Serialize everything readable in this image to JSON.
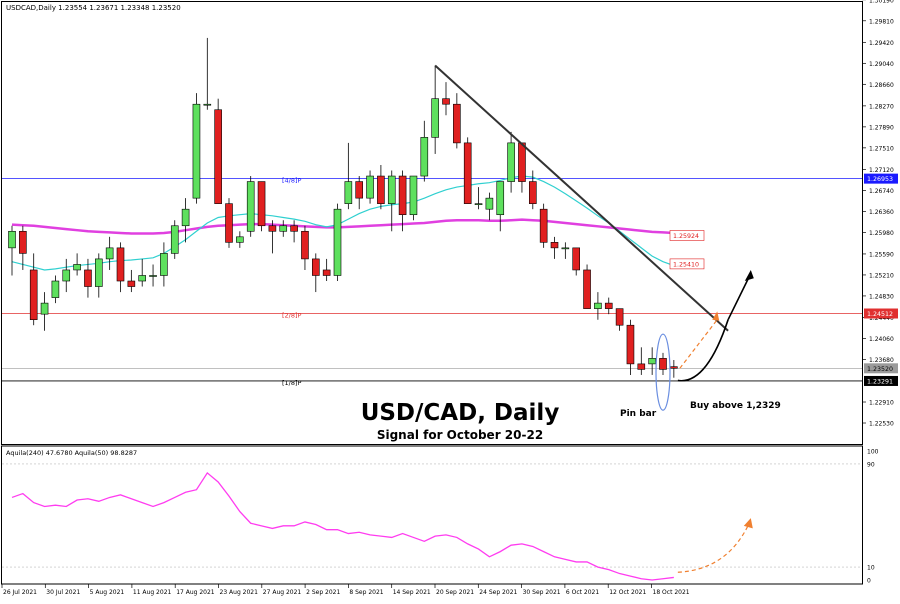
{
  "chart_data": [
    {
      "type": "candlestick",
      "symbol_info": "USDCAD,Daily  1.23554 1.23671 1.23348 1.23520",
      "title": "USD/CAD, Daily",
      "subtitle": "Signal for October 20-22",
      "ylim": [
        1.2215,
        1.3015
      ],
      "y_ticks": [
        "1.30190",
        "1.29810",
        "1.29420",
        "1.29040",
        "1.28660",
        "1.28270",
        "1.27890",
        "1.27510",
        "1.27120",
        "1.26740",
        "1.26360",
        "1.25980",
        "1.25590",
        "1.25210",
        "1.24830",
        "1.24440",
        "1.24060",
        "1.23680",
        "1.22910",
        "1.22530"
      ],
      "x_ticks": [
        "26 Jul 2021",
        "30 Jul 2021",
        "5 Aug 2021",
        "11 Aug 2021",
        "17 Aug 2021",
        "23 Aug 2021",
        "27 Aug 2021",
        "2 Sep 2021",
        "8 Sep 2021",
        "14 Sep 2021",
        "20 Sep 2021",
        "24 Sep 2021",
        "30 Sep 2021",
        "6 Oct 2021",
        "12 Oct 2021",
        "18 Oct 2021"
      ],
      "candles": [
        {
          "o": 1.257,
          "h": 1.261,
          "l": 1.252,
          "c": 1.26
        },
        {
          "o": 1.26,
          "h": 1.261,
          "l": 1.253,
          "c": 1.256
        },
        {
          "o": 1.253,
          "h": 1.256,
          "l": 1.243,
          "c": 1.244
        },
        {
          "o": 1.245,
          "h": 1.249,
          "l": 1.242,
          "c": 1.247
        },
        {
          "o": 1.248,
          "h": 1.252,
          "l": 1.247,
          "c": 1.251
        },
        {
          "o": 1.251,
          "h": 1.255,
          "l": 1.249,
          "c": 1.253
        },
        {
          "o": 1.253,
          "h": 1.256,
          "l": 1.252,
          "c": 1.254
        },
        {
          "o": 1.253,
          "h": 1.255,
          "l": 1.248,
          "c": 1.25
        },
        {
          "o": 1.25,
          "h": 1.256,
          "l": 1.248,
          "c": 1.255
        },
        {
          "o": 1.255,
          "h": 1.259,
          "l": 1.253,
          "c": 1.257
        },
        {
          "o": 1.257,
          "h": 1.258,
          "l": 1.249,
          "c": 1.251
        },
        {
          "o": 1.251,
          "h": 1.253,
          "l": 1.249,
          "c": 1.25
        },
        {
          "o": 1.251,
          "h": 1.255,
          "l": 1.25,
          "c": 1.252
        },
        {
          "o": 1.252,
          "h": 1.254,
          "l": 1.25,
          "c": 1.252
        },
        {
          "o": 1.252,
          "h": 1.258,
          "l": 1.25,
          "c": 1.256
        },
        {
          "o": 1.256,
          "h": 1.262,
          "l": 1.255,
          "c": 1.261
        },
        {
          "o": 1.261,
          "h": 1.266,
          "l": 1.258,
          "c": 1.264
        },
        {
          "o": 1.266,
          "h": 1.285,
          "l": 1.265,
          "c": 1.283
        },
        {
          "o": 1.283,
          "h": 1.295,
          "l": 1.282,
          "c": 1.283
        },
        {
          "o": 1.282,
          "h": 1.284,
          "l": 1.265,
          "c": 1.265
        },
        {
          "o": 1.265,
          "h": 1.266,
          "l": 1.257,
          "c": 1.258
        },
        {
          "o": 1.258,
          "h": 1.26,
          "l": 1.257,
          "c": 1.259
        },
        {
          "o": 1.26,
          "h": 1.27,
          "l": 1.259,
          "c": 1.269
        },
        {
          "o": 1.269,
          "h": 1.269,
          "l": 1.26,
          "c": 1.261
        },
        {
          "o": 1.261,
          "h": 1.262,
          "l": 1.256,
          "c": 1.26
        },
        {
          "o": 1.26,
          "h": 1.262,
          "l": 1.259,
          "c": 1.261
        },
        {
          "o": 1.261,
          "h": 1.262,
          "l": 1.258,
          "c": 1.26
        },
        {
          "o": 1.26,
          "h": 1.261,
          "l": 1.253,
          "c": 1.255
        },
        {
          "o": 1.255,
          "h": 1.256,
          "l": 1.249,
          "c": 1.252
        },
        {
          "o": 1.253,
          "h": 1.255,
          "l": 1.251,
          "c": 1.252
        },
        {
          "o": 1.252,
          "h": 1.265,
          "l": 1.251,
          "c": 1.264
        },
        {
          "o": 1.265,
          "h": 1.276,
          "l": 1.264,
          "c": 1.269
        },
        {
          "o": 1.269,
          "h": 1.27,
          "l": 1.264,
          "c": 1.266
        },
        {
          "o": 1.266,
          "h": 1.271,
          "l": 1.265,
          "c": 1.27
        },
        {
          "o": 1.27,
          "h": 1.272,
          "l": 1.264,
          "c": 1.265
        },
        {
          "o": 1.265,
          "h": 1.271,
          "l": 1.26,
          "c": 1.27
        },
        {
          "o": 1.27,
          "h": 1.271,
          "l": 1.26,
          "c": 1.263
        },
        {
          "o": 1.263,
          "h": 1.27,
          "l": 1.262,
          "c": 1.27
        },
        {
          "o": 1.27,
          "h": 1.28,
          "l": 1.269,
          "c": 1.277
        },
        {
          "o": 1.277,
          "h": 1.29,
          "l": 1.274,
          "c": 1.284
        },
        {
          "o": 1.284,
          "h": 1.287,
          "l": 1.281,
          "c": 1.283
        },
        {
          "o": 1.283,
          "h": 1.285,
          "l": 1.275,
          "c": 1.276
        },
        {
          "o": 1.276,
          "h": 1.277,
          "l": 1.265,
          "c": 1.265
        },
        {
          "o": 1.265,
          "h": 1.268,
          "l": 1.264,
          "c": 1.265
        },
        {
          "o": 1.264,
          "h": 1.267,
          "l": 1.262,
          "c": 1.266
        },
        {
          "o": 1.263,
          "h": 1.269,
          "l": 1.26,
          "c": 1.269
        },
        {
          "o": 1.269,
          "h": 1.278,
          "l": 1.267,
          "c": 1.276
        },
        {
          "o": 1.276,
          "h": 1.276,
          "l": 1.267,
          "c": 1.269
        },
        {
          "o": 1.269,
          "h": 1.271,
          "l": 1.264,
          "c": 1.265
        },
        {
          "o": 1.264,
          "h": 1.265,
          "l": 1.257,
          "c": 1.258
        },
        {
          "o": 1.258,
          "h": 1.259,
          "l": 1.255,
          "c": 1.257
        },
        {
          "o": 1.257,
          "h": 1.258,
          "l": 1.255,
          "c": 1.257
        },
        {
          "o": 1.257,
          "h": 1.257,
          "l": 1.252,
          "c": 1.253
        },
        {
          "o": 1.253,
          "h": 1.254,
          "l": 1.246,
          "c": 1.246
        },
        {
          "o": 1.246,
          "h": 1.249,
          "l": 1.244,
          "c": 1.247
        },
        {
          "o": 1.247,
          "h": 1.248,
          "l": 1.245,
          "c": 1.246
        },
        {
          "o": 1.246,
          "h": 1.246,
          "l": 1.242,
          "c": 1.243
        },
        {
          "o": 1.243,
          "h": 1.244,
          "l": 1.234,
          "c": 1.236
        },
        {
          "o": 1.236,
          "h": 1.239,
          "l": 1.234,
          "c": 1.235
        },
        {
          "o": 1.236,
          "h": 1.239,
          "l": 1.234,
          "c": 1.237
        },
        {
          "o": 1.237,
          "h": 1.238,
          "l": 1.234,
          "c": 1.235
        },
        {
          "o": 1.2355,
          "h": 1.2367,
          "l": 1.2335,
          "c": 1.2352
        }
      ],
      "ma_fast": [
        1.2545,
        1.254,
        1.2535,
        1.253,
        1.2532,
        1.2535,
        1.2538,
        1.254,
        1.2542,
        1.2545,
        1.2547,
        1.2548,
        1.255,
        1.2552,
        1.256,
        1.2572,
        1.2585,
        1.26,
        1.2615,
        1.2625,
        1.2628,
        1.263,
        1.2632,
        1.263,
        1.2628,
        1.2625,
        1.2622,
        1.2618,
        1.2612,
        1.2608,
        1.2612,
        1.2622,
        1.2632,
        1.264,
        1.2645,
        1.2648,
        1.265,
        1.2653,
        1.266,
        1.2668,
        1.2675,
        1.268,
        1.2683,
        1.2686,
        1.2688,
        1.2692,
        1.2697,
        1.27,
        1.2698,
        1.269,
        1.268,
        1.2668,
        1.2655,
        1.2642,
        1.2628,
        1.2615,
        1.26,
        1.2585,
        1.257,
        1.2555,
        1.2545,
        1.2538
      ],
      "ma_slow": [
        1.2612,
        1.2611,
        1.261,
        1.2608,
        1.2606,
        1.2604,
        1.2602,
        1.26,
        1.2599,
        1.2598,
        1.2597,
        1.2596,
        1.2596,
        1.2596,
        1.2597,
        1.2599,
        1.2602,
        1.2605,
        1.2608,
        1.261,
        1.2611,
        1.2612,
        1.2613,
        1.2613,
        1.2612,
        1.2611,
        1.261,
        1.2609,
        1.2608,
        1.2607,
        1.2607,
        1.2608,
        1.2609,
        1.261,
        1.2611,
        1.2612,
        1.2613,
        1.2614,
        1.2615,
        1.2617,
        1.2619,
        1.262,
        1.262,
        1.262,
        1.2619,
        1.2619,
        1.262,
        1.2621,
        1.262,
        1.2619,
        1.2617,
        1.2615,
        1.2613,
        1.2611,
        1.2609,
        1.2607,
        1.2605,
        1.2603,
        1.2601,
        1.2599,
        1.2598,
        1.2597
      ],
      "levels": [
        {
          "label": "[4/8]P",
          "value": 1.26953,
          "tag": "1.26953",
          "color": "#1a1aff"
        },
        {
          "label": "[2/8]P",
          "value": 1.24512,
          "tag": "1.24512",
          "color": "#e03030"
        },
        {
          "label": "[1/8]P",
          "value": 1.23291,
          "tag": "1.23291",
          "color": "#000000"
        }
      ],
      "current_price": {
        "value": 1.2352,
        "tag": "1.23520"
      },
      "tags": [
        {
          "text": "1.25924",
          "value": 1.25924
        },
        {
          "text": "1.25410",
          "value": 1.2541
        }
      ],
      "trendline": {
        "from": [
          39,
          1.29
        ],
        "to": [
          66,
          1.242
        ]
      },
      "annotations": {
        "pin_bar": "Pin bar",
        "buy_text": "Buy above 1,2329"
      }
    },
    {
      "type": "line",
      "indicator_label": "Aquila(240) 47.6780  Aquila(50) 98.8287",
      "ylim": [
        0,
        100
      ],
      "y_ticks": [
        "100",
        "90",
        "10",
        "0"
      ],
      "series": [
        {
          "values": [
            64,
            67,
            60,
            57,
            58,
            57,
            62,
            63,
            61,
            64,
            66,
            63,
            60,
            57,
            60,
            64,
            68,
            70,
            83,
            76,
            65,
            53,
            44,
            42,
            40,
            42,
            42,
            45,
            43,
            39,
            39,
            36,
            37,
            35,
            34,
            33,
            36,
            33,
            30,
            34,
            35,
            33,
            28,
            24,
            18,
            22,
            27,
            28,
            26,
            22,
            18,
            16,
            14,
            14,
            10,
            8,
            5,
            3,
            1,
            0,
            1,
            2
          ]
        }
      ]
    }
  ]
}
